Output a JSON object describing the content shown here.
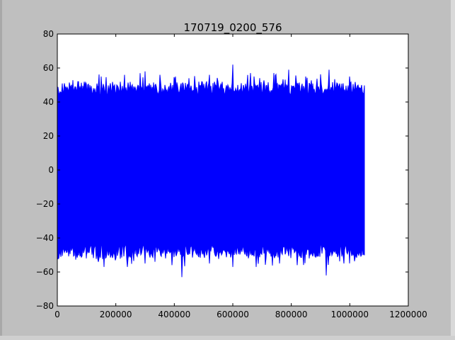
{
  "chart_data": {
    "type": "line",
    "title": "170719_0200_576",
    "xlabel": "",
    "ylabel": "",
    "xlim": [
      0,
      1200000
    ],
    "ylim": [
      -80,
      80
    ],
    "x_ticks": [
      0,
      200000,
      400000,
      600000,
      800000,
      1000000,
      1200000
    ],
    "y_ticks": [
      -80,
      -60,
      -40,
      -20,
      0,
      20,
      40,
      60,
      80
    ],
    "grid": false,
    "legend": "none",
    "line_color": "#0000ff",
    "series": [
      {
        "x_start": 0,
        "x_end": 1050000,
        "typical_upper": 48,
        "typical_lower": -48,
        "max": 62,
        "min": -63,
        "peaks": [
          [
            10000,
            46
          ],
          [
            70000,
            52
          ],
          [
            150000,
            55
          ],
          [
            230000,
            56
          ],
          [
            300000,
            58
          ],
          [
            350000,
            56
          ],
          [
            450000,
            54
          ],
          [
            520000,
            56
          ],
          [
            600000,
            62
          ],
          [
            660000,
            57
          ],
          [
            740000,
            57
          ],
          [
            790000,
            59
          ],
          [
            850000,
            55
          ],
          [
            930000,
            59
          ],
          [
            1000000,
            55
          ],
          [
            1040000,
            50
          ]
        ],
        "troughs": [
          [
            10000,
            -48
          ],
          [
            80000,
            -50
          ],
          [
            160000,
            -57
          ],
          [
            240000,
            -57
          ],
          [
            300000,
            -55
          ],
          [
            370000,
            -52
          ],
          [
            425000,
            -63
          ],
          [
            520000,
            -55
          ],
          [
            600000,
            -57
          ],
          [
            680000,
            -57
          ],
          [
            760000,
            -55
          ],
          [
            820000,
            -56
          ],
          [
            920000,
            -62
          ],
          [
            980000,
            -55
          ],
          [
            1040000,
            -50
          ]
        ]
      }
    ]
  }
}
